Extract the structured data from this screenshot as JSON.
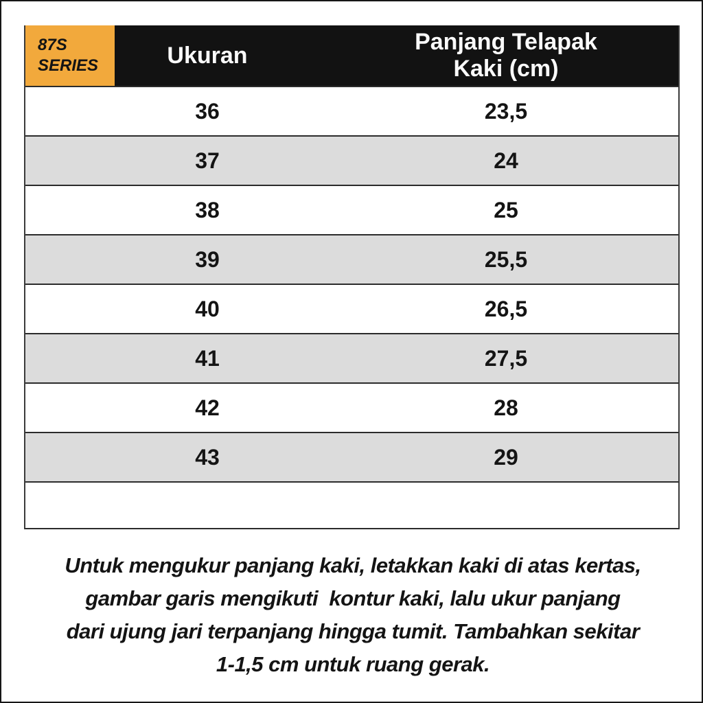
{
  "badge": {
    "line1": "87S",
    "line2": "SERIES"
  },
  "table": {
    "headers": {
      "size": "Ukuran",
      "length": "Panjang Telapak Kaki (cm)"
    },
    "rows": [
      {
        "size": "36",
        "length": "23,5"
      },
      {
        "size": "37",
        "length": "24"
      },
      {
        "size": "38",
        "length": "25"
      },
      {
        "size": "39",
        "length": "25,5"
      },
      {
        "size": "40",
        "length": "26,5"
      },
      {
        "size": "41",
        "length": "27,5"
      },
      {
        "size": "42",
        "length": "28"
      },
      {
        "size": "43",
        "length": "29"
      }
    ]
  },
  "note": {
    "lines": [
      "Untuk mengukur panjang kaki, letakkan kaki di atas kertas,",
      "gambar garis mengikuti  kontur kaki, lalu ukur panjang",
      "dari ujung jari terpanjang hingga tumit. Tambahkan sekitar",
      "1-1,5 cm untuk ruang gerak."
    ]
  },
  "colors": {
    "accent_yellow": "#F2A93C",
    "header_black": "#121212",
    "row_gray": "#DCDCDC",
    "border_dark": "#2B2B2B",
    "text_black": "#141414"
  }
}
